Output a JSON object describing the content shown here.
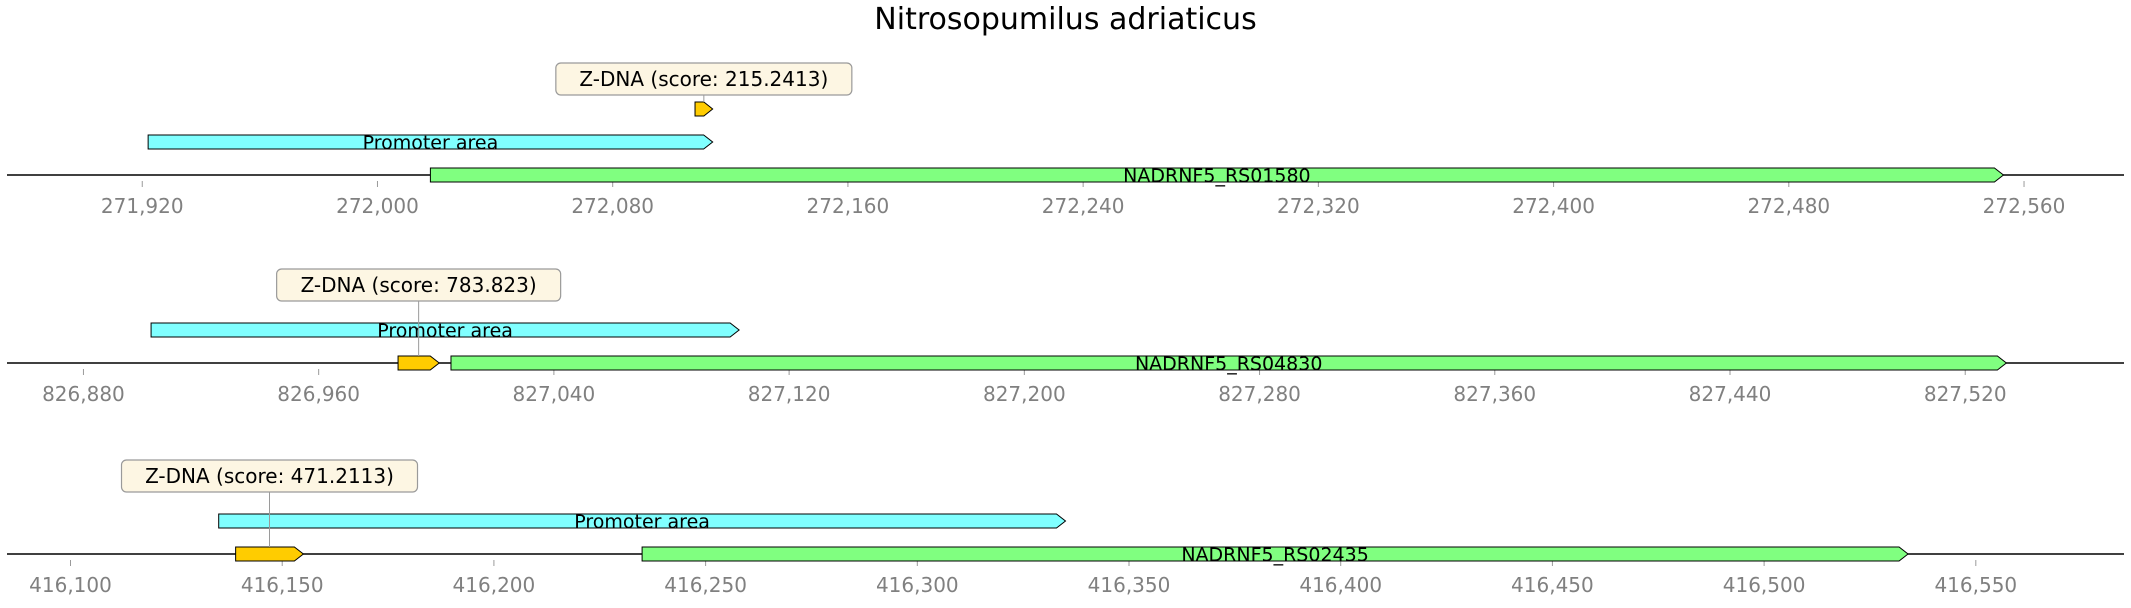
{
  "title": "Nitrosopumilus adriaticus",
  "colors": {
    "zdna": "#ffcc00",
    "promoter": "#80ffff",
    "gene": "#80ff80",
    "axis": "#000000",
    "tick_label": "#808080",
    "callout_bg": "#fdf6e3"
  },
  "panels": [
    {
      "name": "panel-rs01580",
      "range": [
        271874,
        272594
      ],
      "ticks": [
        271920,
        272000,
        272080,
        272160,
        272240,
        272320,
        272400,
        272480,
        272560
      ],
      "tick_labels": [
        "271,920",
        "272,000",
        "272,080",
        "272,160",
        "272,240",
        "272,320",
        "272,400",
        "272,480",
        "272,560"
      ],
      "features": [
        {
          "kind": "gene",
          "label": "NADRNF5_RS01580",
          "start": 272018,
          "end": 272553,
          "strand": 1,
          "level": 0
        },
        {
          "kind": "promoter",
          "label": "Promoter area",
          "start": 271922,
          "end": 272114,
          "strand": 1,
          "level": 1
        },
        {
          "kind": "zdna",
          "label": "",
          "start": 272108,
          "end": 272114,
          "strand": 1,
          "level": 2
        }
      ],
      "callout": {
        "text": "Z-DNA (score: 215.2413)",
        "at": 272111
      }
    },
    {
      "name": "panel-rs04830",
      "range": [
        826854,
        827574
      ],
      "ticks": [
        826880,
        826960,
        827040,
        827120,
        827200,
        827280,
        827360,
        827440,
        827520
      ],
      "tick_labels": [
        "826,880",
        "826,960",
        "827,040",
        "827,120",
        "827,200",
        "827,280",
        "827,360",
        "827,440",
        "827,520"
      ],
      "features": [
        {
          "kind": "gene",
          "label": "NADRNF5_RS04830",
          "start": 827005,
          "end": 827534,
          "strand": 1,
          "level": 0
        },
        {
          "kind": "zdna",
          "label": "",
          "start": 826987,
          "end": 827001,
          "strand": 1,
          "level": 0
        },
        {
          "kind": "promoter",
          "label": "Promoter area",
          "start": 826903,
          "end": 827103,
          "strand": 1,
          "level": 1
        }
      ],
      "callout": {
        "text": "Z-DNA (score: 783.823)",
        "at": 826994
      }
    },
    {
      "name": "panel-rs02435",
      "range": [
        416085,
        416585
      ],
      "ticks": [
        416100,
        416150,
        416200,
        416250,
        416300,
        416350,
        416400,
        416450,
        416500,
        416550
      ],
      "tick_labels": [
        "416,100",
        "416,150",
        "416,200",
        "416,250",
        "416,300",
        "416,350",
        "416,400",
        "416,450",
        "416,500",
        "416,550"
      ],
      "features": [
        {
          "kind": "gene",
          "label": "NADRNF5_RS02435",
          "start": 416235,
          "end": 416534,
          "strand": 1,
          "level": 0
        },
        {
          "kind": "zdna",
          "label": "",
          "start": 416139,
          "end": 416155,
          "strand": 1,
          "level": 0
        },
        {
          "kind": "promoter",
          "label": "Promoter area",
          "start": 416135,
          "end": 416335,
          "strand": 1,
          "level": 1
        }
      ],
      "callout": {
        "text": "Z-DNA (score: 471.2113)",
        "at": 416147
      }
    }
  ]
}
